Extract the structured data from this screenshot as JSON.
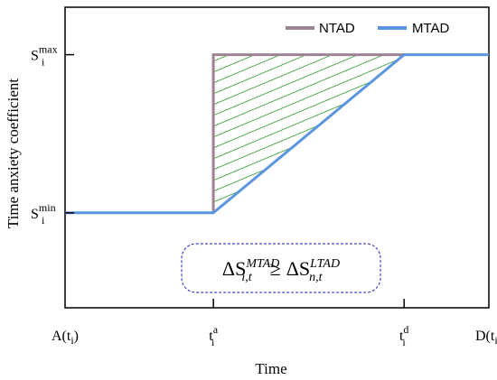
{
  "chart_data": {
    "type": "line",
    "xlabel": "Time",
    "ylabel": "Time anxiety coefficient",
    "x_ticks": [
      {
        "x": 0,
        "base": "A(t",
        "sub": "i",
        "tail": ")",
        "sup": ""
      },
      {
        "x": 35,
        "base": "t",
        "sub": "i",
        "tail": "",
        "sup": "a"
      },
      {
        "x": 80,
        "base": "t",
        "sub": "i",
        "tail": "",
        "sup": "d"
      },
      {
        "x": 100,
        "base": "D(t",
        "sub": "i",
        "tail": ")",
        "sup": ""
      }
    ],
    "y_ticks": [
      {
        "y": 0,
        "base": "S",
        "sub": "i",
        "sup": "min"
      },
      {
        "y": 1,
        "base": "S",
        "sub": "i",
        "sup": "max"
      }
    ],
    "xlim": [
      0,
      100
    ],
    "ylim": [
      -0.6,
      1.3
    ],
    "series": [
      {
        "name": "NTAD",
        "color": "#9e8296",
        "x": [
          35,
          35,
          80
        ],
        "y": [
          0,
          1,
          1
        ]
      },
      {
        "name": "MTAD",
        "color": "#5b95e0",
        "x": [
          0,
          35,
          80,
          100
        ],
        "y": [
          0,
          0,
          1,
          1
        ]
      }
    ],
    "shaded_region": {
      "color": "#2e9b2e",
      "pattern": "diagonal-hatch"
    },
    "legend_position": "top-right",
    "annotation": {
      "lhs_base": "ΔS",
      "lhs_sup": "MTAD",
      "lhs_sub": "i,t",
      "op": "≥",
      "rhs_base": "ΔS",
      "rhs_sup": "LTAD",
      "rhs_sub": "n,t",
      "border_color": "#4646c8"
    }
  }
}
